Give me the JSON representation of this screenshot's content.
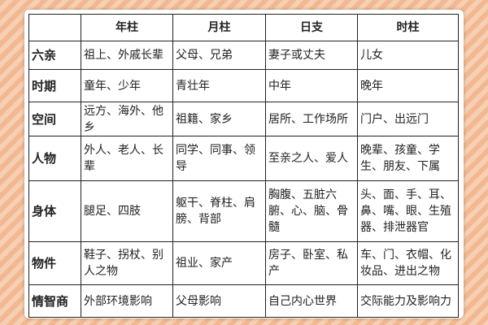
{
  "header": [
    "",
    "年柱",
    "月柱",
    "日支",
    "时柱"
  ],
  "rows": [
    {
      "label": "六亲",
      "cells": [
        "祖上、外戚长辈",
        "父母、兄弟",
        "妻子或丈夫",
        "儿女"
      ]
    },
    {
      "label": "时期",
      "cells": [
        "童年、少年",
        "青壮年",
        "中年",
        "晚年"
      ]
    },
    {
      "label": "空间",
      "cells": [
        "远方、海外、他乡",
        "祖籍、家乡",
        "居所、工作场所",
        "门户、出远门"
      ]
    },
    {
      "label": "人物",
      "cells": [
        "外人、老人、长辈",
        "同学、同事、领导",
        "至亲之人、爱人",
        "晚辈、孩童、学生、朋友、下属"
      ]
    },
    {
      "label": "身体",
      "cells": [
        "腿足、四肢",
        "躯干、脊柱、肩膀、背部",
        "胸腹、五脏六腑、心、脑、骨髓",
        "头、面、手、耳、鼻、嘴、眼、生殖器、排泄器官"
      ]
    },
    {
      "label": "物件",
      "cells": [
        "鞋子、拐杖、别人之物",
        "祖业、家产",
        "房子、卧室、私产",
        "车、门、衣帽、化妆品、进出之物"
      ]
    },
    {
      "label": "情智商",
      "cells": [
        "外部环境影响",
        "父母影响",
        "自己内心世界",
        "交际能力及影响力"
      ]
    }
  ]
}
